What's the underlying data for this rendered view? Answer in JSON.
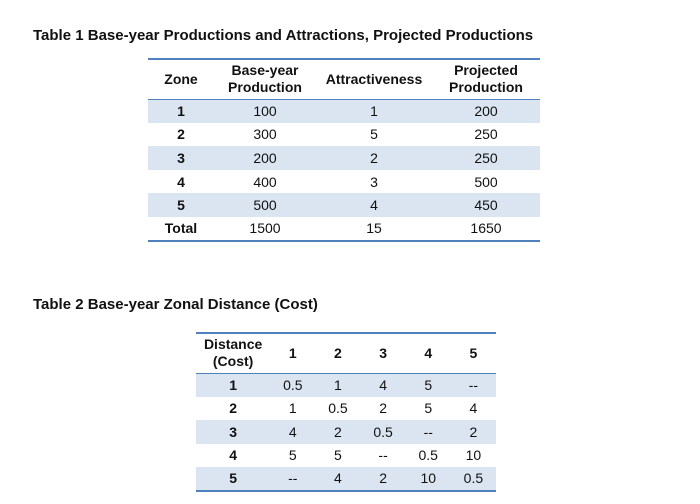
{
  "table1": {
    "caption": "Table 1 Base-year Productions and Attractions, Projected Productions",
    "headers": {
      "zone": "Zone",
      "base_line1": "Base-year",
      "base_line2": "Production",
      "attractiveness": "Attractiveness",
      "proj_line1": "Projected",
      "proj_line2": "Production"
    },
    "rows": [
      {
        "zone": "1",
        "base": "100",
        "attr": "1",
        "proj": "200"
      },
      {
        "zone": "2",
        "base": "300",
        "attr": "5",
        "proj": "250"
      },
      {
        "zone": "3",
        "base": "200",
        "attr": "2",
        "proj": "250"
      },
      {
        "zone": "4",
        "base": "400",
        "attr": "3",
        "proj": "500"
      },
      {
        "zone": "5",
        "base": "500",
        "attr": "4",
        "proj": "450"
      }
    ],
    "total": {
      "label": "Total",
      "base": "1500",
      "attr": "15",
      "proj": "1650"
    }
  },
  "table2": {
    "caption": "Table 2 Base-year Zonal Distance (Cost)",
    "corner_line1": "Distance",
    "corner_line2": "(Cost)",
    "columns": [
      "1",
      "2",
      "3",
      "4",
      "5"
    ],
    "rows": [
      {
        "label": "1",
        "cells": [
          "0.5",
          "1",
          "4",
          "5",
          "--"
        ]
      },
      {
        "label": "2",
        "cells": [
          "1",
          "0.5",
          "2",
          "5",
          "4"
        ]
      },
      {
        "label": "3",
        "cells": [
          "4",
          "2",
          "0.5",
          "--",
          "2"
        ]
      },
      {
        "label": "4",
        "cells": [
          "5",
          "5",
          "--",
          "0.5",
          "10"
        ]
      },
      {
        "label": "5",
        "cells": [
          "--",
          "4",
          "2",
          "10",
          "0.5"
        ]
      }
    ]
  },
  "colors": {
    "rule": "#4f81bd",
    "shade": "#dbe5f1"
  }
}
